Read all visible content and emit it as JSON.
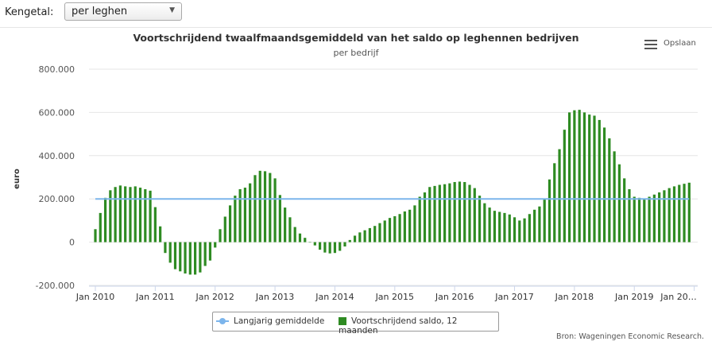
{
  "controls": {
    "kengetal_label": "Kengetal:",
    "kengetal_value": "per leghen"
  },
  "menu": {
    "label": "Opslaan",
    "icon": "hamburger-menu-icon"
  },
  "credits": "Bron: Wageningen Economic Research.",
  "legend": {
    "line_label": "Langjarig gemiddelde",
    "bar_label": "Voortschrijdend saldo, 12 maanden"
  },
  "colors": {
    "bar": "#2e8b22",
    "line": "#7cb5ec"
  },
  "chart_data": {
    "type": "bar",
    "title": "Voortschrijdend twaalfmaandsgemiddeld van het saldo op leghennen bedrijven",
    "subtitle": "per bedrijf",
    "ylabel": "euro",
    "ylim": [
      -200000,
      800000
    ],
    "yticks": [
      -200000,
      0,
      200000,
      400000,
      600000,
      800000
    ],
    "ytick_labels": [
      "-200.000",
      "0",
      "200.000",
      "400.000",
      "600.000",
      "800.000"
    ],
    "x_tick_labels": [
      "Jan 2010",
      "Jan 2011",
      "Jan 2012",
      "Jan 2013",
      "Jan 2014",
      "Jan 2015",
      "Jan 2016",
      "Jan 2017",
      "Jan 2018",
      "Jan 2019",
      "Jan 20…"
    ],
    "start": "2010-01",
    "frequency": "monthly",
    "series": [
      {
        "name": "Voortschrijdend saldo, 12 maanden",
        "type": "bar",
        "values": [
          60000,
          135000,
          205000,
          240000,
          255000,
          262000,
          258000,
          255000,
          258000,
          252000,
          245000,
          238000,
          162000,
          73000,
          -50000,
          -95000,
          -125000,
          -135000,
          -145000,
          -150000,
          -150000,
          -140000,
          -110000,
          -85000,
          -25000,
          60000,
          118000,
          170000,
          215000,
          245000,
          252000,
          272000,
          310000,
          330000,
          328000,
          320000,
          295000,
          218000,
          160000,
          115000,
          70000,
          40000,
          20000,
          0,
          -15000,
          -35000,
          -48000,
          -52000,
          -50000,
          -40000,
          -20000,
          10000,
          30000,
          45000,
          55000,
          65000,
          75000,
          88000,
          100000,
          112000,
          120000,
          130000,
          142000,
          150000,
          170000,
          210000,
          230000,
          255000,
          260000,
          265000,
          268000,
          272000,
          278000,
          280000,
          278000,
          265000,
          250000,
          215000,
          180000,
          160000,
          145000,
          140000,
          135000,
          128000,
          115000,
          100000,
          110000,
          130000,
          150000,
          165000,
          200000,
          290000,
          365000,
          430000,
          520000,
          600000,
          610000,
          612000,
          600000,
          590000,
          585000,
          565000,
          530000,
          480000,
          420000,
          360000,
          295000,
          245000,
          210000,
          205000,
          200000,
          210000,
          220000,
          230000,
          240000,
          250000,
          258000,
          265000,
          270000,
          275000
        ]
      },
      {
        "name": "Langjarig gemiddelde",
        "type": "line",
        "value": 200000
      }
    ],
    "legend_position": "bottom-center",
    "grid": true
  }
}
